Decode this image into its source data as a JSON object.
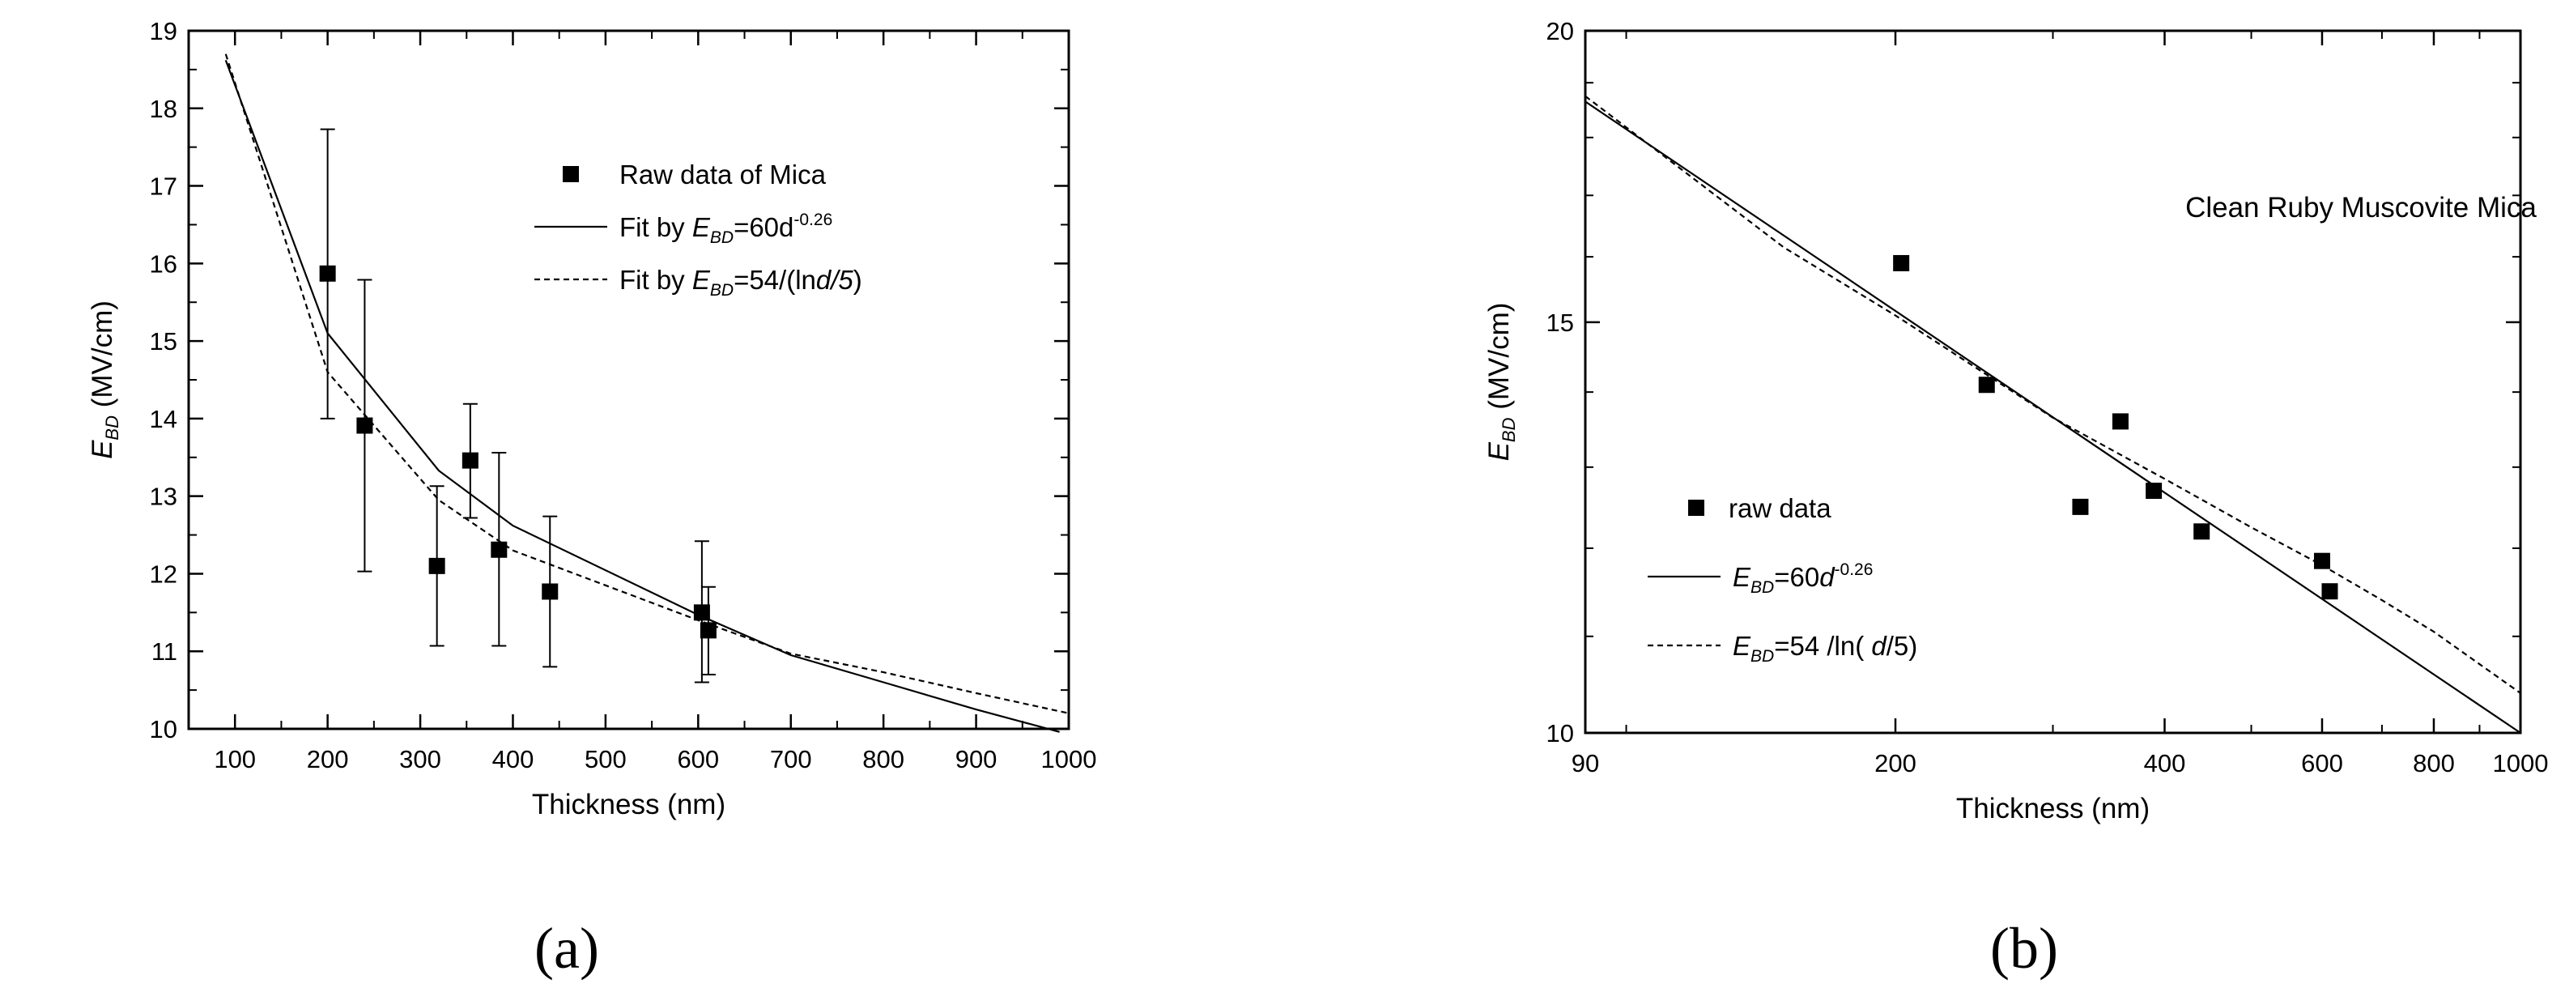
{
  "chart_data": [
    {
      "panel_label": "(a)",
      "type": "scatter",
      "xlabel": "Thickness (nm)",
      "ylabel_main": "E",
      "ylabel_sub": "BD",
      "ylabel_rest": " (MV/cm)",
      "xscale": "linear",
      "yscale": "linear",
      "xlim": [
        50,
        1000
      ],
      "ylim": [
        10,
        19
      ],
      "xticks": [
        100,
        200,
        300,
        400,
        500,
        600,
        700,
        800,
        900,
        1000
      ],
      "xtick_labels": [
        "100",
        "200",
        "300",
        "400",
        "500",
        "600",
        "700",
        "800",
        "900",
        "1000"
      ],
      "yticks": [
        10,
        11,
        12,
        13,
        14,
        15,
        16,
        17,
        18,
        19
      ],
      "ytick_labels": [
        "10",
        "11",
        "12",
        "13",
        "14",
        "15",
        "16",
        "17",
        "18",
        "19"
      ],
      "grid": false,
      "legend_position": "top-right",
      "legend": [
        {
          "parts": [
            "Raw data of Mica"
          ]
        },
        {
          "parts": [
            "Fit by ",
            "E",
            "BD",
            "=60d",
            "-0.26"
          ]
        },
        {
          "parts": [
            "Fit by ",
            "E",
            "BD",
            "=54/(ln",
            "d/5",
            ")"
          ]
        }
      ],
      "series": [
        {
          "style": "square-markers",
          "x": [
            200,
            240,
            318,
            354,
            385,
            440,
            604,
            611
          ],
          "y": [
            15.87,
            13.91,
            12.1,
            13.46,
            12.31,
            11.77,
            11.5,
            11.27
          ],
          "err_low": [
            14.0,
            12.03,
            11.07,
            12.72,
            11.07,
            10.8,
            10.6,
            10.7
          ],
          "err_high": [
            17.73,
            15.79,
            13.13,
            14.19,
            13.56,
            12.74,
            12.42,
            11.83
          ]
        },
        {
          "style": "solid-line",
          "x": [
            90,
            200,
            320,
            400,
            600,
            700,
            800,
            900,
            990
          ],
          "y": [
            18.62,
            15.1,
            13.33,
            12.62,
            11.47,
            10.95,
            10.6,
            10.25,
            9.96
          ]
        },
        {
          "style": "dashed-line",
          "x": [
            90,
            200,
            320,
            400,
            600,
            700,
            800,
            900,
            1000
          ],
          "y": [
            18.7,
            14.6,
            12.95,
            12.3,
            11.4,
            10.97,
            10.73,
            10.46,
            10.2
          ]
        }
      ]
    },
    {
      "panel_label": "(b)",
      "type": "scatter",
      "title": "Clean Ruby Muscovite Mica",
      "xlabel": "Thickness (nm)",
      "ylabel_main": "E",
      "ylabel_sub": "BD",
      "ylabel_rest": " (MV/cm)",
      "xscale": "log",
      "yscale": "log",
      "xlim": [
        90,
        1000
      ],
      "ylim": [
        10,
        20
      ],
      "xticks": [
        90,
        200,
        400,
        600,
        800,
        1000
      ],
      "xtick_labels": [
        "90",
        "200",
        "400",
        "600",
        "800",
        "1000"
      ],
      "yticks": [
        10,
        15,
        20
      ],
      "ytick_labels": [
        "10",
        "15",
        "20"
      ],
      "grid": false,
      "legend_position": "bottom-left",
      "legend": [
        {
          "parts": [
            "raw data"
          ]
        },
        {
          "parts": [
            "E",
            "BD",
            "=60",
            "d",
            "-0.26"
          ]
        },
        {
          "parts": [
            "E",
            "BD",
            "=54 /ln( ",
            "d",
            "/5)"
          ]
        }
      ],
      "series": [
        {
          "style": "square-markers",
          "x": [
            203,
            253,
            322,
            357,
            389,
            440,
            600,
            612
          ],
          "y": [
            15.9,
            14.1,
            12.5,
            13.6,
            12.7,
            12.2,
            11.85,
            11.5
          ]
        },
        {
          "style": "solid-line",
          "x": [
            90,
            1000
          ],
          "y": [
            18.65,
            10.0
          ]
        },
        {
          "style": "dashed-line",
          "x": [
            90,
            150,
            200,
            300,
            400,
            500,
            600,
            700,
            800,
            1000
          ],
          "y": [
            18.75,
            16.15,
            15.1,
            13.65,
            12.85,
            12.25,
            11.8,
            11.4,
            11.05,
            10.4
          ]
        }
      ]
    }
  ]
}
